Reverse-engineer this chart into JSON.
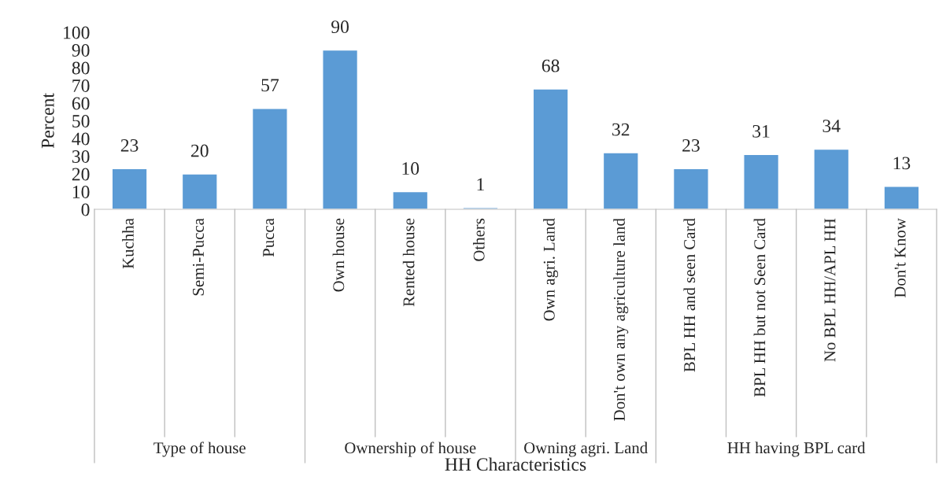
{
  "chart_data": {
    "type": "bar",
    "categories": [
      "Kuchha",
      "Semi-Pucca",
      "Pucca",
      "Own house",
      "Rented house",
      "Others",
      "Own agri. Land",
      "Don't own any agriculture land",
      "BPL HH and seen Card",
      "BPL HH but not Seen Card",
      "No BPL HH/APL HH",
      "Don't Know"
    ],
    "values": [
      23,
      20,
      57,
      90,
      10,
      1,
      68,
      32,
      23,
      31,
      34,
      13
    ],
    "color": "#5b9bd5",
    "xlabel": "HH Characteristics",
    "ylabel": "Percent",
    "annotations": [
      "Type of house",
      "Ownership of house",
      "Owning agri. Land",
      "HH having BPL card"
    ],
    "ylim": [
      0,
      100
    ],
    "yticks": [
      0,
      10,
      20,
      30,
      40,
      50,
      60,
      70,
      80,
      90,
      100
    ],
    "data_labels": true,
    "grid": false
  }
}
